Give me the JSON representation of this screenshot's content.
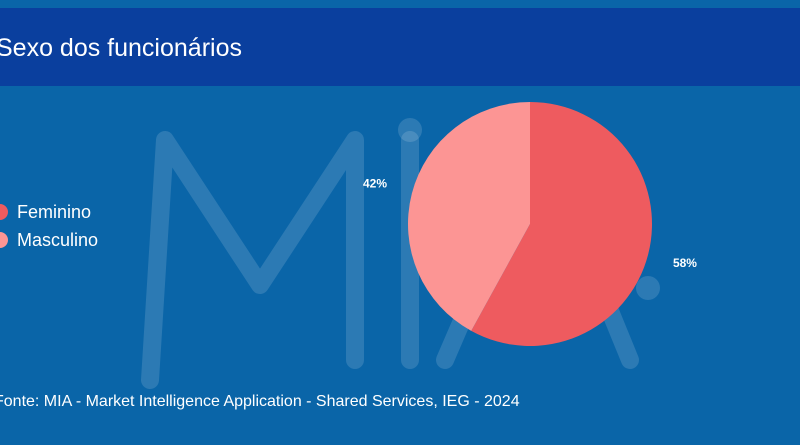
{
  "header": {
    "title": "Sexo dos funcionários"
  },
  "footer": {
    "source": "Fonte: MIA - Market Intelligence Application - Shared Services, IEG - 2024"
  },
  "watermark": {
    "text": "MIA"
  },
  "colors": {
    "background": "#0a65a8",
    "header": "#0a3f9e"
  },
  "chart_data": {
    "type": "pie",
    "title": "Sexo dos funcionários",
    "legend_position": "left",
    "series": [
      {
        "name": "Feminino",
        "value": 58,
        "label": "58%",
        "color": "#ee5b5f"
      },
      {
        "name": "Masculino",
        "value": 42,
        "label": "42%",
        "color": "#fc9594"
      }
    ]
  }
}
